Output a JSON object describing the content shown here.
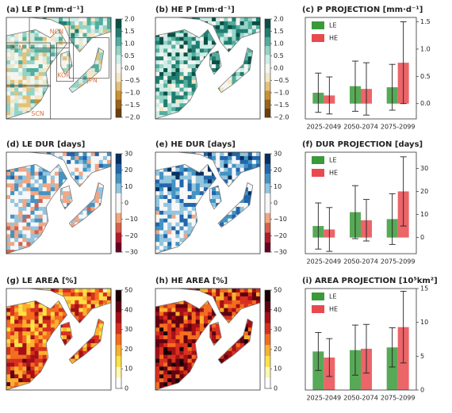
{
  "chart_data": [
    {
      "type": "map",
      "title": "(a) LE P [mm·d⁻¹]",
      "clim": [
        -2,
        2
      ],
      "cticks": [
        {
          "value": 2,
          "label": "2.0"
        },
        1.5,
        {
          "value": 1,
          "label": "1.0"
        },
        0.5,
        {
          "value": 0,
          "label": "0.0"
        },
        {
          "value": -0.5,
          "label": "−0.5"
        },
        {
          "value": -1,
          "label": "−1.0"
        },
        {
          "value": -1.5,
          "label": "−1.5"
        },
        {
          "value": -2,
          "label": "−2.0"
        }
      ],
      "colors": [
        "#6b3f0e",
        "#9a6318",
        "#c8922f",
        "#e2c17a",
        "#f5e6c4",
        "#f5f5f0",
        "#d0ece6",
        "#94d3c6",
        "#52ad9d",
        "#1f7d70",
        "#0b4f45"
      ],
      "region_labels": [
        "NCN",
        "ECN",
        "KOR",
        "JPN",
        "SCN"
      ]
    },
    {
      "type": "map",
      "title": "(b) HE P [mm·d⁻¹]",
      "clim": [
        -2,
        2
      ],
      "cticks": [
        {
          "value": 2,
          "label": "2.0"
        },
        1.5,
        {
          "value": 1,
          "label": "1.0"
        },
        0.5,
        {
          "value": 0,
          "label": "0.0"
        },
        {
          "value": -0.5,
          "label": "−0.5"
        },
        {
          "value": -1,
          "label": "−1.0"
        },
        {
          "value": -1.5,
          "label": "−1.5"
        },
        {
          "value": -2,
          "label": "−2.0"
        }
      ],
      "colors": [
        "#6b3f0e",
        "#9a6318",
        "#c8922f",
        "#e2c17a",
        "#f5e6c4",
        "#f5f5f0",
        "#d0ece6",
        "#94d3c6",
        "#52ad9d",
        "#1f7d70",
        "#0b4f45"
      ]
    },
    {
      "type": "bar",
      "title": "(c) P PROJECTION [mm·d⁻¹]",
      "categories": [
        "2025-2049",
        "2050-2074",
        "2075-2099"
      ],
      "series": [
        {
          "name": "LE",
          "color": "#3a9a3a",
          "values": [
            0.2,
            0.32,
            0.3
          ],
          "errors": [
            0.36,
            0.46,
            0.42
          ]
        },
        {
          "name": "HE",
          "color": "#e84a4f",
          "values": [
            0.15,
            0.27,
            0.75
          ],
          "errors": [
            0.34,
            0.48,
            0.75
          ]
        }
      ],
      "ylim": [
        -0.28,
        1.58
      ],
      "yticks": [
        {
          "value": 0,
          "label": "0.0"
        },
        0.5,
        {
          "value": 1,
          "label": "1.0"
        },
        1.5
      ],
      "legend": "upper left"
    },
    {
      "type": "map",
      "title": "(d) LE DUR [days]",
      "clim": [
        -30,
        30
      ],
      "cticks": [
        30,
        20,
        10,
        0,
        {
          "value": -10,
          "label": "−10"
        },
        {
          "value": -20,
          "label": "−20"
        },
        {
          "value": -30,
          "label": "−30"
        }
      ],
      "colors": [
        "#67001f",
        "#b2182b",
        "#d6604d",
        "#f4a582",
        "#f7f7f7",
        "#f7f7f7",
        "#92c5de",
        "#4393c3",
        "#2166ac",
        "#053061"
      ]
    },
    {
      "type": "map",
      "title": "(e) HE DUR [days]",
      "clim": [
        -30,
        30
      ],
      "cticks": [
        30,
        20,
        10,
        0,
        {
          "value": -10,
          "label": "−10"
        },
        {
          "value": -20,
          "label": "−20"
        },
        {
          "value": -30,
          "label": "−30"
        }
      ],
      "colors": [
        "#67001f",
        "#b2182b",
        "#d6604d",
        "#f4a582",
        "#f7f7f7",
        "#f7f7f7",
        "#92c5de",
        "#4393c3",
        "#2166ac",
        "#053061"
      ]
    },
    {
      "type": "bar",
      "title": "(f) DUR PROJECTION [days]",
      "categories": [
        "2025-2049",
        "2050-2074",
        "2075-2099"
      ],
      "series": [
        {
          "name": "LE",
          "color": "#3a9a3a",
          "values": [
            5,
            11,
            8
          ],
          "errors": [
            10,
            11.5,
            11
          ]
        },
        {
          "name": "HE",
          "color": "#e84a4f",
          "values": [
            3.5,
            7.5,
            20
          ],
          "errors": [
            9.5,
            9,
            15
          ]
        }
      ],
      "ylim": [
        -7,
        37
      ],
      "yticks": [
        0,
        10,
        20,
        30
      ],
      "legend": "upper left"
    },
    {
      "type": "map",
      "title": "(g) LE AREA [%]",
      "clim": [
        0,
        50
      ],
      "cticks": [
        50,
        40,
        30,
        20,
        10,
        0
      ],
      "colors": [
        "#ffffff",
        "#fff7b0",
        "#fde047",
        "#fbb02d",
        "#f46d1f",
        "#d7301f",
        "#a50f15",
        "#600010",
        "#1a0005"
      ]
    },
    {
      "type": "map",
      "title": "(h) HE AREA [%]",
      "clim": [
        0,
        50
      ],
      "cticks": [
        50,
        40,
        30,
        20,
        10,
        0
      ],
      "colors": [
        "#ffffff",
        "#fff7b0",
        "#fde047",
        "#fbb02d",
        "#f46d1f",
        "#d7301f",
        "#a50f15",
        "#600010",
        "#1a0005"
      ]
    },
    {
      "type": "bar",
      "title": "(i) AREA PROJECTION [10⁵km²]",
      "categories": [
        "2025-2049",
        "2050-2074",
        "2075-2099"
      ],
      "series": [
        {
          "name": "LE",
          "color": "#3a9a3a",
          "values": [
            5.7,
            5.9,
            6.3
          ],
          "errors": [
            2.8,
            3.7,
            2.9
          ]
        },
        {
          "name": "HE",
          "color": "#e84a4f",
          "values": [
            4.8,
            6.1,
            9.3
          ],
          "errors": [
            2.8,
            3.6,
            5.3
          ]
        }
      ],
      "ylim": [
        0,
        15
      ],
      "yticks": [
        0,
        5,
        10,
        15
      ],
      "legend": "upper left"
    }
  ]
}
